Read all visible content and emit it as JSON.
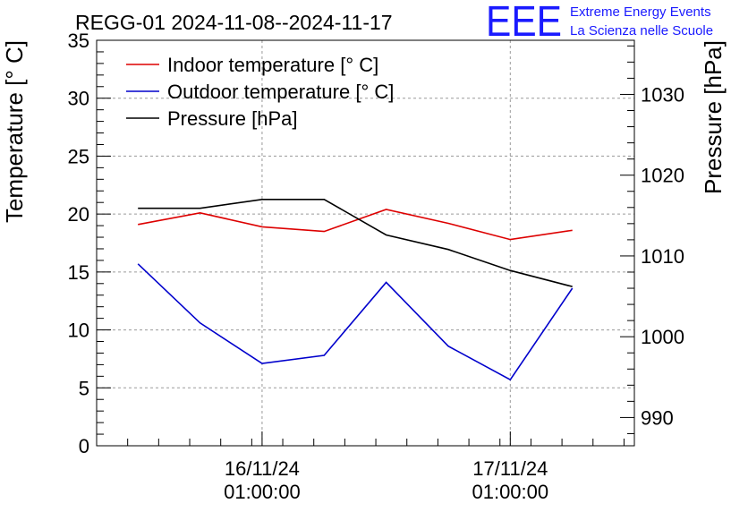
{
  "chart_data": {
    "type": "line",
    "title": "REGG-01 2024-11-08--2024-11-17",
    "ylabel": "Temperature [° C]",
    "y2label": "Pressure [hPa]",
    "ylim": [
      0,
      35
    ],
    "y2lim": [
      986.5,
      1036.7
    ],
    "xlim": [
      "2024-11-15 09:00",
      "2024-11-17 13:00"
    ],
    "yticks": [
      "0",
      "5",
      "10",
      "15",
      "20",
      "25",
      "30",
      "35"
    ],
    "y2ticks": [
      "990",
      "1000",
      "1010",
      "1020",
      "1030"
    ],
    "xticks": [
      {
        "x": "2024-11-16 01:00",
        "line1": "16/11/24",
        "line2": "01:00:00"
      },
      {
        "x": "2024-11-17 01:00",
        "line1": "17/11/24",
        "line2": "01:00:00"
      }
    ],
    "grid": true,
    "legend_position": "top-left",
    "x": [
      "2024-11-15 13:00",
      "2024-11-15 19:00",
      "2024-11-16 01:00",
      "2024-11-16 07:00",
      "2024-11-16 13:00",
      "2024-11-16 19:00",
      "2024-11-17 01:00",
      "2024-11-17 07:00"
    ],
    "series": [
      {
        "name": "Indoor temperature [° C]",
        "axis": "left",
        "color": "#dd0000",
        "values": [
          19.1,
          20.1,
          18.9,
          18.5,
          20.4,
          19.2,
          17.8,
          18.6
        ]
      },
      {
        "name": "Outdoor temperature [° C]",
        "axis": "left",
        "color": "#0000cc",
        "values": [
          15.7,
          10.6,
          7.1,
          7.8,
          14.1,
          8.6,
          5.7,
          13.6
        ]
      },
      {
        "name": "Pressure [hPa]",
        "axis": "right",
        "color": "#000000",
        "values": [
          1015.9,
          1015.9,
          1017.0,
          1017.0,
          1012.6,
          1010.8,
          1008.2,
          1006.2
        ]
      }
    ]
  },
  "logo": {
    "text": "EEE",
    "line1": "Extreme Energy Events",
    "line2": "La Scienza nelle Scuole",
    "color": "#1a1aff"
  }
}
